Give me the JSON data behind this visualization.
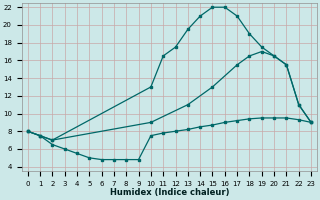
{
  "xlabel": "Humidex (Indice chaleur)",
  "bg_color": "#cce8e8",
  "grid_color": "#c8a8a8",
  "line_color": "#006868",
  "xlim": [
    -0.5,
    23.5
  ],
  "ylim": [
    3.5,
    22.5
  ],
  "xticks": [
    0,
    1,
    2,
    3,
    4,
    5,
    6,
    7,
    8,
    9,
    10,
    11,
    12,
    13,
    14,
    15,
    16,
    17,
    18,
    19,
    20,
    21,
    22,
    23
  ],
  "yticks": [
    4,
    6,
    8,
    10,
    12,
    14,
    16,
    18,
    20,
    22
  ],
  "curve_top_x": [
    0,
    1,
    2,
    10,
    11,
    12,
    13,
    14,
    15,
    16,
    17,
    18,
    19,
    20,
    21,
    22,
    23
  ],
  "curve_top_y": [
    8.0,
    7.5,
    7.0,
    13.0,
    16.5,
    17.5,
    19.5,
    21.0,
    22.0,
    22.0,
    21.0,
    19.0,
    17.5,
    16.5,
    15.5,
    11.0,
    9.0
  ],
  "curve_mid_x": [
    0,
    1,
    2,
    10,
    13,
    15,
    17,
    18,
    19,
    20,
    21,
    22,
    23
  ],
  "curve_mid_y": [
    8.0,
    7.5,
    7.0,
    9.0,
    11.0,
    13.0,
    15.5,
    16.5,
    17.0,
    16.5,
    15.5,
    11.0,
    9.0
  ],
  "curve_bot_x": [
    0,
    1,
    2,
    3,
    4,
    5,
    6,
    7,
    8,
    9,
    10,
    11,
    12,
    13,
    14,
    15,
    16,
    17,
    18,
    19,
    20,
    21,
    22,
    23
  ],
  "curve_bot_y": [
    8.0,
    7.5,
    6.5,
    6.0,
    5.5,
    5.0,
    4.8,
    4.8,
    4.8,
    4.8,
    7.5,
    7.8,
    8.0,
    8.2,
    8.5,
    8.7,
    9.0,
    9.2,
    9.4,
    9.5,
    9.5,
    9.5,
    9.3,
    9.0
  ]
}
